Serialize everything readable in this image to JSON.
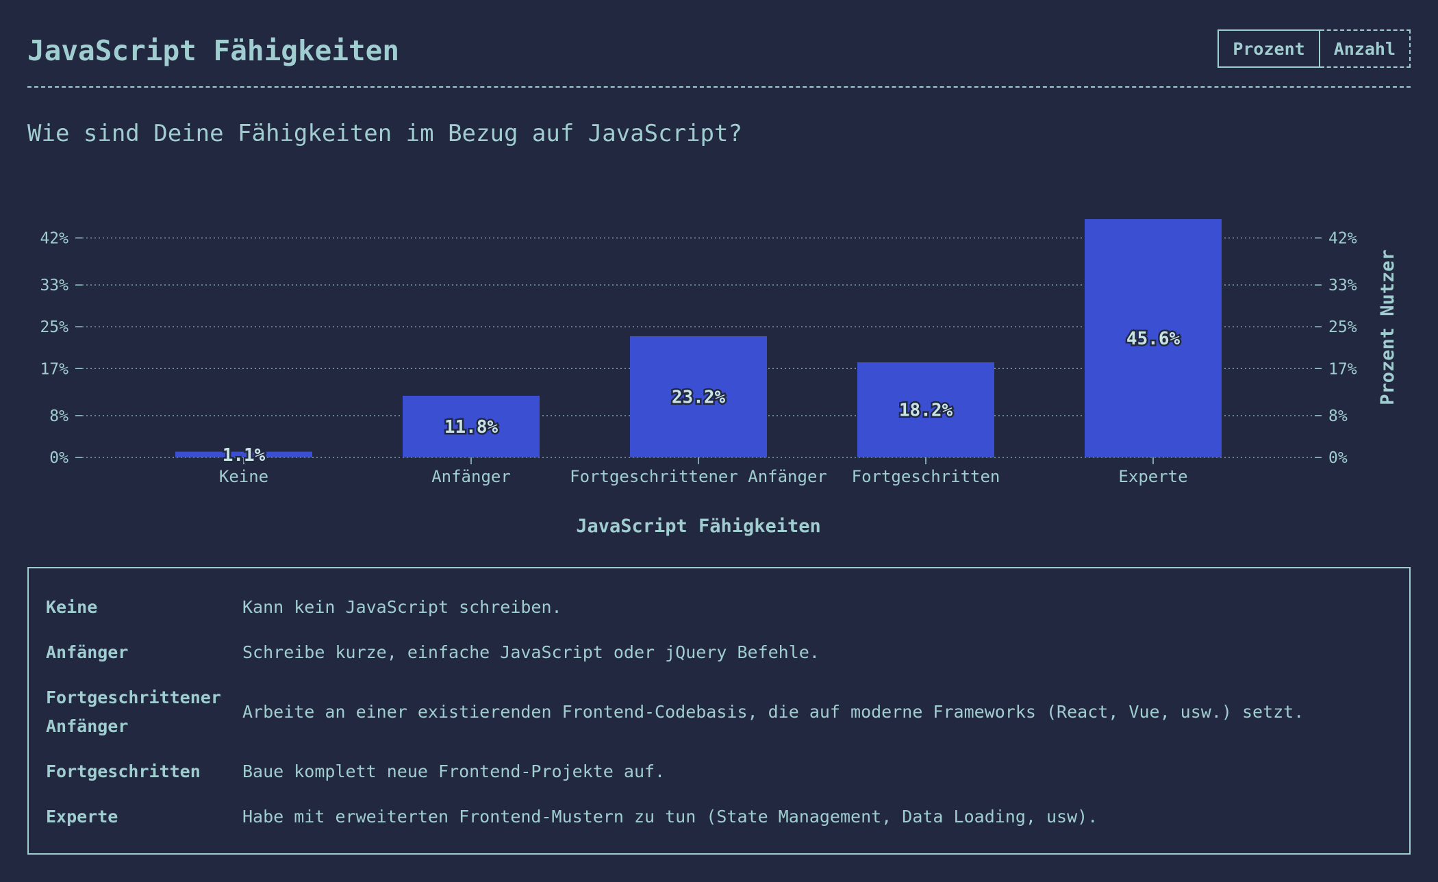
{
  "header": {
    "title": "JavaScript Fähigkeiten",
    "toggle": {
      "percent_label": "Prozent",
      "count_label": "Anzahl",
      "active": "percent"
    }
  },
  "question": "Wie sind Deine Fähigkeiten im Bezug auf JavaScript?",
  "chart_data": {
    "type": "bar",
    "categories": [
      "Keine",
      "Anfänger",
      "Fortgeschrittener Anfänger",
      "Fortgeschritten",
      "Experte"
    ],
    "values": [
      1.1,
      11.8,
      23.2,
      18.2,
      45.6
    ],
    "value_labels": [
      "1.1%",
      "11.8%",
      "23.2%",
      "18.2%",
      "45.6%"
    ],
    "title": "",
    "xlabel": "JavaScript Fähigkeiten",
    "ylabel": "Prozent Nutzer",
    "ylim": [
      0,
      45.6
    ],
    "y_ticks": [
      0,
      8,
      17,
      25,
      33,
      42
    ],
    "y_tick_labels": [
      "0%",
      "8%",
      "17%",
      "25%",
      "33%",
      "42%"
    ],
    "grid": "dotted horizontal",
    "bar_color": "#3b4fd3",
    "dual_y_axis": true
  },
  "legend": [
    {
      "term": "Keine",
      "description": "Kann kein JavaScript schreiben."
    },
    {
      "term": "Anfänger",
      "description": "Schreibe kurze, einfache JavaScript oder jQuery Befehle."
    },
    {
      "term": "Fortgeschrittener Anfänger",
      "description": "Arbeite an einer existierenden Frontend-Codebasis, die auf moderne Frameworks (React, Vue, usw.) setzt."
    },
    {
      "term": "Fortgeschritten",
      "description": "Baue komplett neue Frontend-Projekte auf."
    },
    {
      "term": "Experte",
      "description": "Habe mit erweiterten Frontend-Mustern zu tun (State Management, Data Loading, usw)."
    }
  ],
  "colors": {
    "background": "#232841",
    "foreground": "#9fcdd0",
    "bar": "#3b4fd3"
  }
}
